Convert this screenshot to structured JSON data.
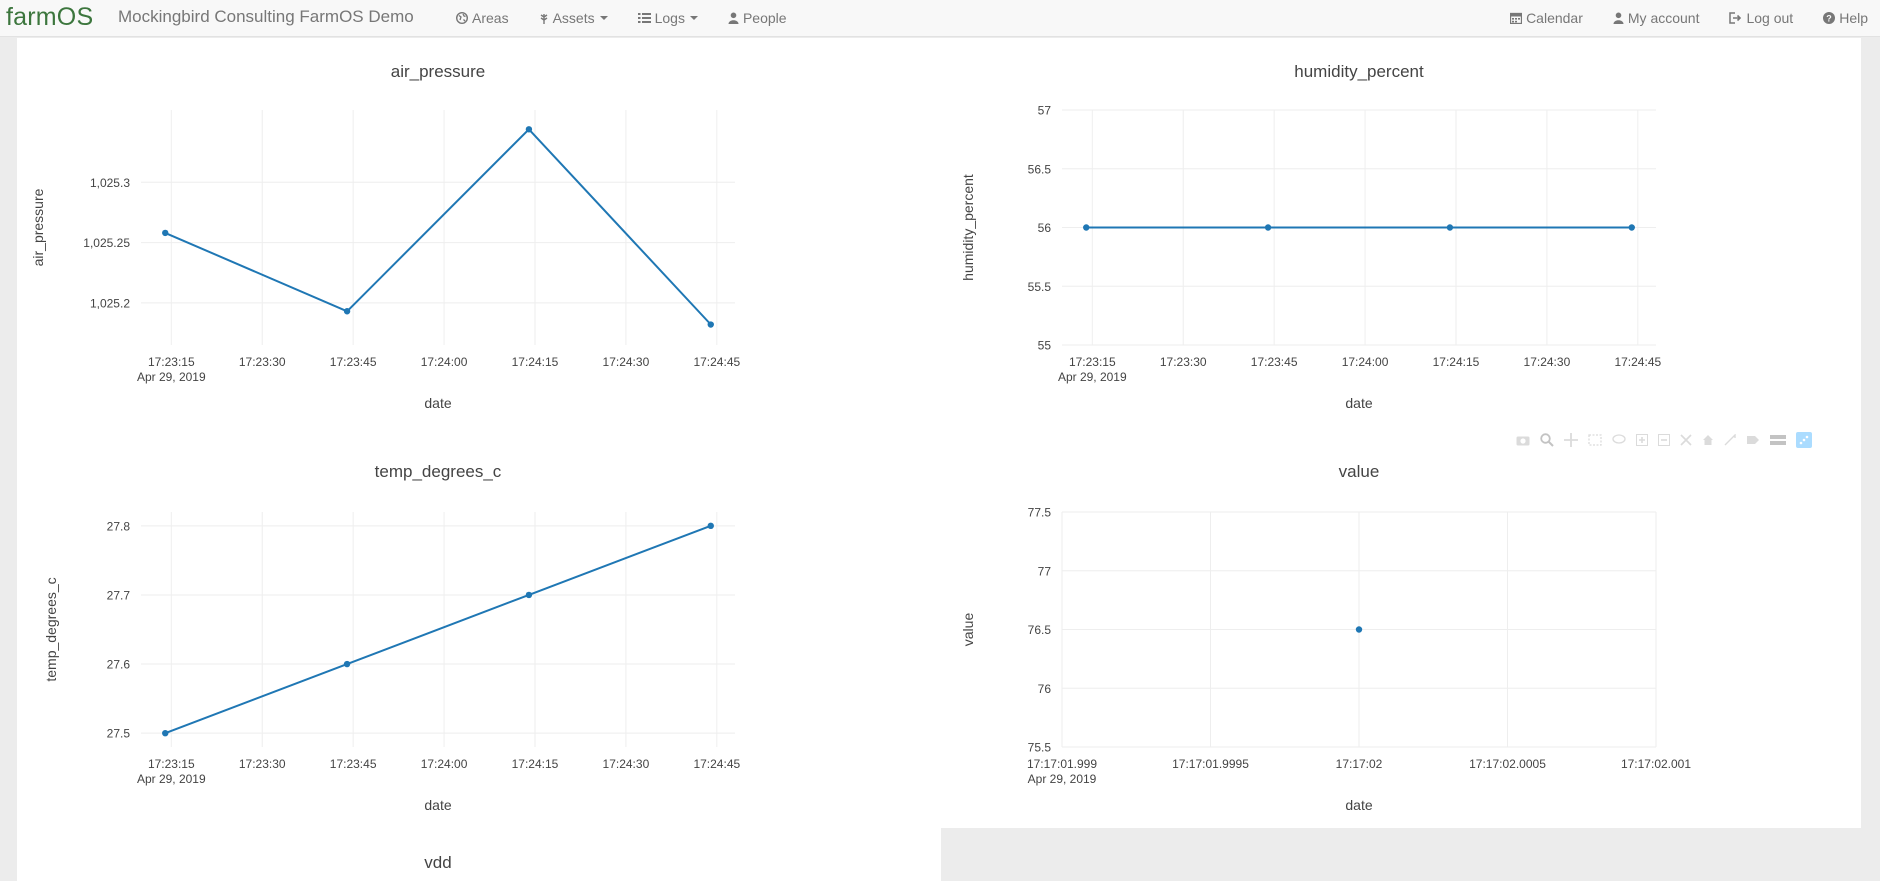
{
  "navbar": {
    "brand": "farmOS",
    "site_name": "Mockingbird Consulting FarmOS Demo",
    "left_items": [
      {
        "label": "Areas",
        "icon": "globe-icon",
        "dropdown": false
      },
      {
        "label": "Assets",
        "icon": "leaf-icon",
        "dropdown": true
      },
      {
        "label": "Logs",
        "icon": "list-icon",
        "dropdown": true
      },
      {
        "label": "People",
        "icon": "user-icon",
        "dropdown": false
      }
    ],
    "right_items": [
      {
        "label": "Calendar",
        "icon": "calendar-icon"
      },
      {
        "label": "My account",
        "icon": "user-icon"
      },
      {
        "label": "Log out",
        "icon": "logout-icon"
      },
      {
        "label": "Help",
        "icon": "question-icon"
      }
    ]
  },
  "colors": {
    "line": "#1f77b4",
    "brand": "#3c763d"
  },
  "chart_data": [
    {
      "type": "line",
      "title": "air_pressure",
      "xlabel": "date",
      "ylabel": "air_pressure",
      "x": [
        "17:23:14",
        "17:23:44",
        "17:24:14",
        "17:24:44"
      ],
      "y": [
        1025.258,
        1025.193,
        1025.344,
        1025.182
      ],
      "x_ticks": [
        "17:23:15",
        "17:23:30",
        "17:23:45",
        "17:24:00",
        "17:24:15",
        "17:24:30",
        "17:24:45"
      ],
      "x_tick_values": [
        "17:23:15",
        "17:23:30",
        "17:23:45",
        "17:24:00",
        "17:24:15",
        "17:24:30",
        "17:24:45"
      ],
      "x_sublabel": "Apr 29, 2019",
      "y_ticks": [
        "1,025.2",
        "1,025.25",
        "1,025.3"
      ],
      "y_tick_values": [
        1025.2,
        1025.25,
        1025.3
      ],
      "ylim": [
        1025.165,
        1025.36
      ],
      "xlim": [
        "17:23:10",
        "17:24:48"
      ],
      "grid": true
    },
    {
      "type": "line",
      "title": "humidity_percent",
      "xlabel": "date",
      "ylabel": "humidity_percent",
      "x": [
        "17:23:14",
        "17:23:44",
        "17:24:14",
        "17:24:44"
      ],
      "y": [
        56,
        56,
        56,
        56
      ],
      "x_ticks": [
        "17:23:15",
        "17:23:30",
        "17:23:45",
        "17:24:00",
        "17:24:15",
        "17:24:30",
        "17:24:45"
      ],
      "x_tick_values": [
        "17:23:15",
        "17:23:30",
        "17:23:45",
        "17:24:00",
        "17:24:15",
        "17:24:30",
        "17:24:45"
      ],
      "x_sublabel": "Apr 29, 2019",
      "y_ticks": [
        "55",
        "55.5",
        "56",
        "56.5",
        "57"
      ],
      "y_tick_values": [
        55,
        55.5,
        56,
        56.5,
        57
      ],
      "ylim": [
        55,
        57
      ],
      "xlim": [
        "17:23:10",
        "17:24:48"
      ],
      "grid": true
    },
    {
      "type": "line",
      "title": "temp_degrees_c",
      "xlabel": "date",
      "ylabel": "temp_degrees_c",
      "x": [
        "17:23:14",
        "17:23:44",
        "17:24:14",
        "17:24:44"
      ],
      "y": [
        27.5,
        27.6,
        27.7,
        27.8
      ],
      "x_ticks": [
        "17:23:15",
        "17:23:30",
        "17:23:45",
        "17:24:00",
        "17:24:15",
        "17:24:30",
        "17:24:45"
      ],
      "x_tick_values": [
        "17:23:15",
        "17:23:30",
        "17:23:45",
        "17:24:00",
        "17:24:15",
        "17:24:30",
        "17:24:45"
      ],
      "x_sublabel": "Apr 29, 2019",
      "y_ticks": [
        "27.5",
        "27.6",
        "27.7",
        "27.8"
      ],
      "y_tick_values": [
        27.5,
        27.6,
        27.7,
        27.8
      ],
      "ylim": [
        27.48,
        27.82
      ],
      "xlim": [
        "17:23:10",
        "17:24:48"
      ],
      "grid": true
    },
    {
      "type": "scatter",
      "title": "value",
      "xlabel": "date",
      "ylabel": "value",
      "x": [
        "17:17:02.000"
      ],
      "y": [
        76.5
      ],
      "x_ticks": [
        "17:17:01.999",
        "17:17:01.9995",
        "17:17:02",
        "17:17:02.0005",
        "17:17:02.001"
      ],
      "x_tick_values": [
        "17:17:01.999",
        "17:17:01.9995",
        "17:17:02.000",
        "17:17:02.0005",
        "17:17:02.001"
      ],
      "x_sublabel": "Apr 29, 2019",
      "y_ticks": [
        "75.5",
        "76",
        "76.5",
        "77",
        "77.5"
      ],
      "y_tick_values": [
        75.5,
        76,
        76.5,
        77,
        77.5
      ],
      "ylim": [
        75.5,
        77.5
      ],
      "xlim": [
        "17:17:01.999",
        "17:17:02.001"
      ],
      "grid": true
    },
    {
      "type": "line",
      "title": "vdd"
    }
  ]
}
